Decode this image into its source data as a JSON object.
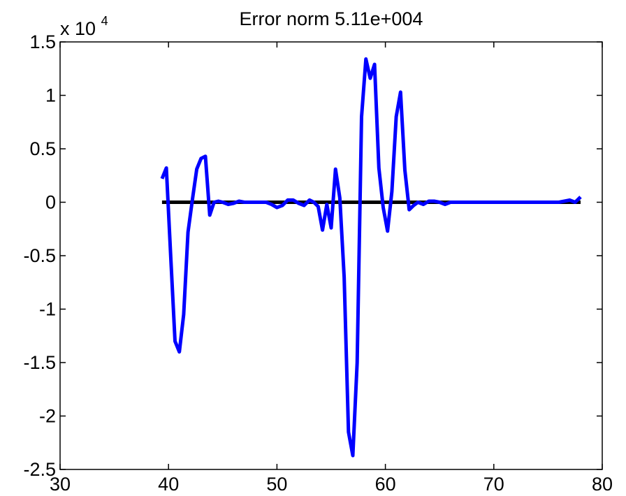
{
  "chart_data": {
    "type": "line",
    "title": "Error norm 5.11e+004",
    "y_exponent_base": "x 10",
    "y_exponent_power": "4",
    "xlim": [
      30,
      80
    ],
    "ylim": [
      -25000,
      15000
    ],
    "x_ticks": [
      30,
      40,
      50,
      60,
      70,
      80
    ],
    "x_tick_labels": [
      "30",
      "40",
      "50",
      "60",
      "70",
      "80"
    ],
    "y_ticks": [
      15000,
      10000,
      5000,
      0,
      -5000,
      -10000,
      -15000,
      -20000,
      -25000
    ],
    "y_tick_labels": [
      "1.5",
      "1",
      "0.5",
      "0",
      "-0.5",
      "-1",
      "-1.5",
      "-2",
      "-2.5"
    ],
    "grid": false,
    "series": [
      {
        "color": "#0000ff",
        "x": [
          39.4,
          39.8,
          40.2,
          40.6,
          41.0,
          41.4,
          41.8,
          42.2,
          42.6,
          43.0,
          43.4,
          43.8,
          44.2,
          44.6,
          45.0,
          45.5,
          46.0,
          46.5,
          47.0,
          47.5,
          48.0,
          48.5,
          49.0,
          49.5,
          50.0,
          50.5,
          51.0,
          51.5,
          52.0,
          52.5,
          53.0,
          53.4,
          53.8,
          54.2,
          54.6,
          55.0,
          55.4,
          55.8,
          56.2,
          56.6,
          57.0,
          57.4,
          57.8,
          58.2,
          58.6,
          59.0,
          59.4,
          59.8,
          60.2,
          60.6,
          61.0,
          61.4,
          61.8,
          62.2,
          62.6,
          63.0,
          63.5,
          64.0,
          64.5,
          65.0,
          65.5,
          66.0,
          66.5,
          67.0,
          68.0,
          69.0,
          70.0,
          71.0,
          72.0,
          73.0,
          74.0,
          75.0,
          76.0,
          76.5,
          77.0,
          77.5,
          78.0
        ],
        "y": [
          2200,
          3200,
          -5000,
          -13000,
          -14000,
          -10500,
          -2800,
          200,
          3100,
          4100,
          4300,
          -1200,
          0,
          100,
          0,
          -200,
          -100,
          100,
          0,
          0,
          0,
          0,
          0,
          -200,
          -500,
          -300,
          200,
          200,
          -100,
          -300,
          200,
          0,
          -400,
          -2600,
          -200,
          -2400,
          3100,
          400,
          -7000,
          -21500,
          -23700,
          -15000,
          8000,
          13400,
          11600,
          12900,
          3200,
          -500,
          -2700,
          1000,
          8000,
          10300,
          3000,
          -700,
          -300,
          0,
          -200,
          100,
          100,
          0,
          -200,
          0,
          0,
          0,
          0,
          0,
          0,
          0,
          0,
          0,
          0,
          0,
          0,
          100,
          200,
          0,
          500
        ]
      },
      {
        "color": "#000000",
        "x": [
          39.4,
          78.0
        ],
        "y": [
          0,
          0
        ]
      }
    ]
  }
}
